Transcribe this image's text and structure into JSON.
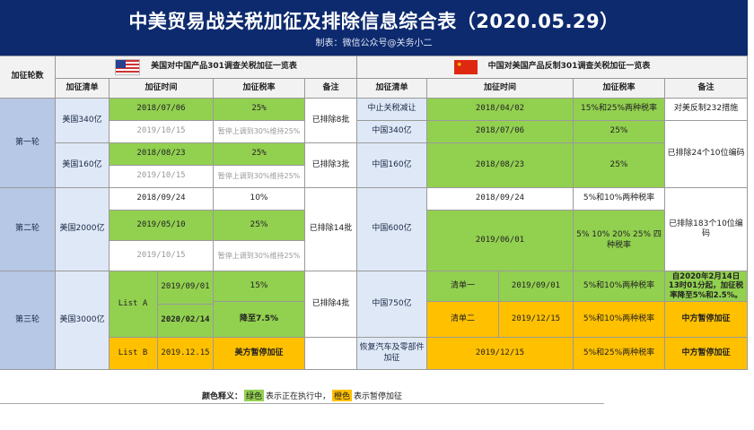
{
  "header": {
    "title": "中美贸易战关税加征及排除信息综合表（2020.05.29）",
    "subtitle": "制表：微信公众号@关务小二"
  },
  "table": {
    "round_col": "加征轮数",
    "us_section": "美国对中国产品301调查关税加征一览表",
    "cn_section": "中国对美国产品反制301调查关税加征一览表",
    "col_list": "加征清单",
    "col_time": "加征时间",
    "col_rate": "加征税率",
    "col_note": "备注",
    "round1": "第一轮",
    "round2": "第二轮",
    "round3": "第三轮",
    "us": {
      "r1_340": "美国340亿",
      "r1_340_t1": "2018/07/06",
      "r1_340_r1": "25%",
      "r1_340_t2": "2019/10/15",
      "r1_340_r2": "暂停上调到30%维持25%",
      "r1_note_a": "已排除8批",
      "r1_160": "美国160亿",
      "r1_160_t1": "2018/08/23",
      "r1_160_r1": "25%",
      "r1_160_t2": "2019/10/15",
      "r1_160_r2": "暂停上调到30%维持25%",
      "r1_note_b": "已排除3批",
      "r2_2000": "美国2000亿",
      "r2_t1": "2018/09/24",
      "r2_r1": "10%",
      "r2_t2": "2019/05/10",
      "r2_r2": "25%",
      "r2_t3": "2019/10/15",
      "r2_r3": "暂停上调到30%维持25%",
      "r2_note": "已排除14批",
      "r3_3000": "美国3000亿",
      "r3_lista": "List A",
      "r3_t1": "2019/09/01",
      "r3_r1": "15%",
      "r3_t2": "2020/02/14",
      "r3_r2": "降至7.5%",
      "r3_note": "已排除4批",
      "r3_listb": "List B",
      "r3_t3": "2019.12.15",
      "r3_r3": "美方暂停加征"
    },
    "cn": {
      "r1_stop": "中止关税减让",
      "r1_stop_t": "2018/04/02",
      "r1_stop_r": "15%和25%两种税率",
      "r1_stop_n": "对美反制232措施",
      "r1_340": "中国340亿",
      "r1_340_t": "2018/07/06",
      "r1_340_r": "25%",
      "r1_160": "中国160亿",
      "r1_160_t": "2018/08/23",
      "r1_160_r": "25%",
      "r1_note": "已排除24个10位编码",
      "r2_600": "中国600亿",
      "r2_t1": "2018/09/24",
      "r2_r1": "5%和10%两种税率",
      "r2_t2": "2019/06/01",
      "r2_r2": "5% 10% 20% 25% 四种税率",
      "r2_note": "已排除183个10位编码",
      "r3_750": "中国750亿",
      "r3_q1": "清单一",
      "r3_q1_t": "2019/09/01",
      "r3_q1_r": "5%和10%两种税率",
      "r3_q1_n": "自2020年2月14日13时01分起，加征税率降至5%和2.5%。",
      "r3_q2": "清单二",
      "r3_q2_t": "2019/12/15",
      "r3_q2_r": "5%和10%两种税率",
      "r3_q2_n": "中方暂停加征",
      "r3_auto": "恢复汽车及零部件加征",
      "r3_auto_t": "2019/12/15",
      "r3_auto_r": "5%和25%两种税率",
      "r3_auto_n": "中方暂停加征"
    }
  },
  "legend": {
    "label": "颜色释义：",
    "green": "绿色",
    "green_text": "表示正在执行中，",
    "orange": "橙色",
    "orange_text": "表示暂停加征"
  },
  "colors": {
    "header": "#0d2a6e",
    "green": "#92d050",
    "orange": "#ffc000",
    "round_bg": "#b7c7e6"
  }
}
